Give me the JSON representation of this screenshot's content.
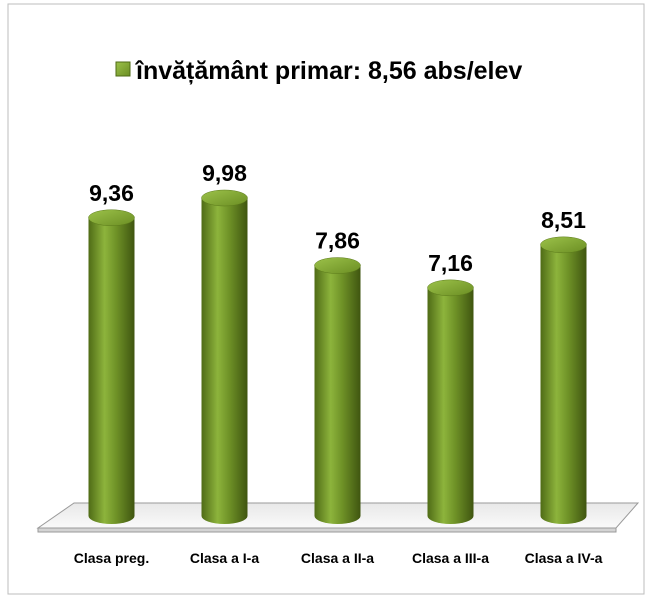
{
  "chart_data": {
    "type": "bar",
    "categories": [
      "Clasa preg.",
      "Clasa a I-a",
      "Clasa a II-a",
      "Clasa a III-a",
      "Clasa a IV-a"
    ],
    "series": [
      {
        "name": "învățământ primar: 8,56 abs/elev",
        "color": "#6b8e23",
        "values": [
          9.36,
          9.98,
          7.86,
          7.16,
          8.51
        ],
        "value_labels": [
          "9,36",
          "9,98",
          "7,86",
          "7,16",
          "8,51"
        ]
      }
    ]
  }
}
